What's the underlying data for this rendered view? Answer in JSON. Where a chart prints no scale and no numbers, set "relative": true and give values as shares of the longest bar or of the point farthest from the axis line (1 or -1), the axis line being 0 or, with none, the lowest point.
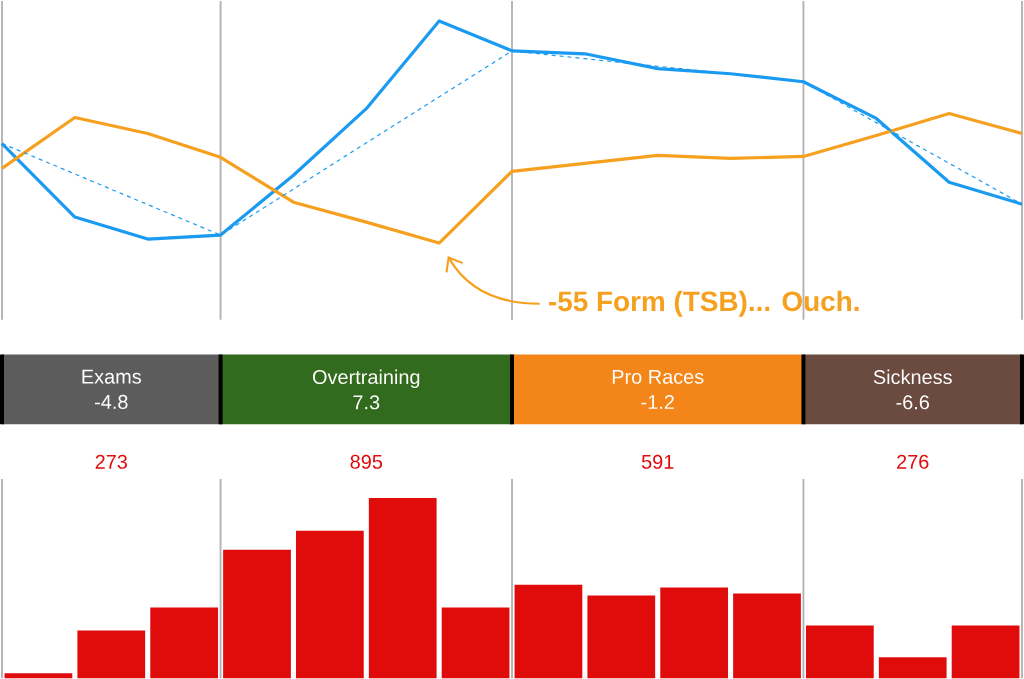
{
  "chart_data": [
    {
      "type": "line",
      "relative": true,
      "grid": "x",
      "categories": [
        null,
        null,
        null,
        null,
        null,
        null,
        null,
        null,
        null,
        null,
        null,
        null,
        null,
        null,
        null
      ],
      "series": [
        {
          "type": "line",
          "color": "#1a9af0",
          "values": [
            0.448,
            0.117,
            0.018,
            0.036,
            0.305,
            0.605,
            1,
            0.865,
            0.852,
            0.785,
            0.762,
            0.726,
            0.561,
            0.274,
            0.175
          ]
        },
        {
          "type": "line",
          "color": "#f5a01e",
          "values": [
            0.336,
            0.565,
            0.493,
            0.386,
            0.184,
            0.094,
            0,
            0.323,
            0.359,
            0.395,
            0.381,
            0.39,
            0.484,
            0.583,
            0.493
          ]
        },
        {
          "type": "line",
          "color": "#1a9af0",
          "line_style": "dashed",
          "values": [
            0.448,
            0.311,
            0.173,
            0.036,
            0.243,
            0.451,
            0.658,
            0.865,
            0.83,
            0.796,
            0.761,
            0.726,
            0.542,
            0.359,
            0.175
          ]
        }
      ],
      "annotations": [
        "-55 Form (TSB)... Ouch."
      ]
    },
    {
      "type": "other",
      "categories": [
        "Exams",
        "Overtraining",
        "Pro Races",
        "Sickness"
      ],
      "colors": [
        "#5c5c5c",
        "#336b1e",
        "#f48518",
        "#6b4a3f"
      ],
      "annotations": [
        "-4.8",
        "7.3",
        "-1.2",
        "-6.6"
      ]
    },
    {
      "type": "bar",
      "relative": true,
      "color": "#e00b0b",
      "categories": [
        null,
        null,
        null,
        null,
        null,
        null,
        null,
        null,
        null,
        null,
        null,
        null,
        null,
        null
      ],
      "values": [
        0.028,
        0.265,
        0.392,
        0.713,
        0.818,
        1,
        0.392,
        0.519,
        0.459,
        0.503,
        0.47,
        0.293,
        0.116,
        0.293
      ],
      "annotations": [
        "273",
        "895",
        "591",
        "276"
      ]
    }
  ]
}
